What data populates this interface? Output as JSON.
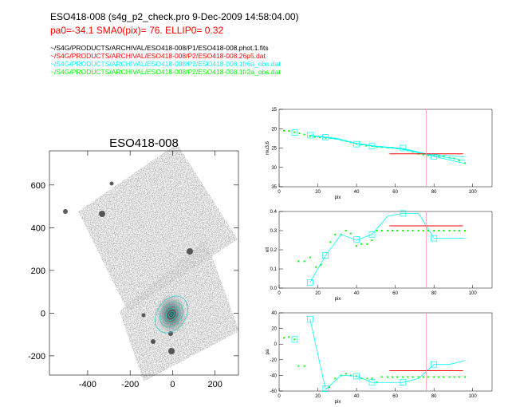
{
  "header": {
    "title": "ESO418-008    (s4g_p2_check.pro   9-Dec-2009 14:58:04.00)",
    "params": "pa0=-34.1  SMA0(pix)= 76.  ELLIP0= 0.32",
    "files": [
      "~/S4G/PRODUCTS/ARCHIVAL/ESO418-008/P1/ESO418-008.phot.1.fits",
      "~/S4G/PRODUCTS/ARCHIVAL/ESO418-008/P2/ESO418-008.26p5.dat",
      "~/S4G/PRODUCTS/ARCHIVAL/ESO418-008/P2/ESO418-008.1fr6a_obs.dat",
      "~/S4G/PRODUCTS/ARCHIVAL/ESO418-008/P2/ESO418-008.1fr2a_obs.dat"
    ]
  },
  "colors": {
    "model": "#00ffff",
    "data": "#00ff00",
    "ref": "#ff0000",
    "marker": "#ff9999"
  },
  "chart_data": [
    {
      "type": "image",
      "title": "ESO418-008",
      "xlim": [
        -580,
        310
      ],
      "ylim": [
        -290,
        760
      ],
      "xticks": [
        -400,
        -200,
        0,
        200
      ],
      "yticks": [
        -200,
        0,
        200,
        400,
        600
      ]
    },
    {
      "type": "line",
      "ylabel": "mu3.6",
      "xlabel": "pix",
      "xlim": [
        0,
        110
      ],
      "ylim": [
        35,
        15
      ],
      "xticks": [
        0,
        20,
        40,
        60,
        80,
        100
      ],
      "yticks": [
        15,
        20,
        25,
        30,
        35
      ],
      "ref_x": 76,
      "ref_line": {
        "y": 26.5,
        "x": [
          57,
          95
        ]
      },
      "cyan_lines": [
        [
          [
            16,
            21.7
          ],
          [
            30,
            22.6
          ],
          [
            40,
            23.8
          ],
          [
            50,
            24.5
          ],
          [
            64,
            25.1
          ],
          [
            76,
            26.5
          ],
          [
            96,
            27.3
          ]
        ],
        [
          [
            16,
            21.8
          ],
          [
            30,
            22.7
          ],
          [
            40,
            23.9
          ],
          [
            50,
            24.6
          ],
          [
            64,
            25.2
          ],
          [
            76,
            26.6
          ],
          [
            96,
            28.2
          ]
        ],
        [
          [
            16,
            21.7
          ],
          [
            30,
            22.5
          ],
          [
            40,
            23.9
          ],
          [
            50,
            24.6
          ],
          [
            64,
            25.3
          ],
          [
            76,
            26.7
          ],
          [
            96,
            29
          ]
        ]
      ],
      "squares": [
        [
          8,
          21
        ],
        [
          16,
          21.7
        ],
        [
          24,
          22.2
        ],
        [
          40,
          24
        ],
        [
          48,
          24.5
        ],
        [
          64,
          25
        ],
        [
          80,
          27.2
        ]
      ],
      "green": [
        [
          2.5,
          20.5
        ],
        [
          5,
          20.6
        ],
        [
          8,
          20.9
        ],
        [
          10.5,
          21.2
        ],
        [
          13,
          21.5
        ],
        [
          16,
          21.9
        ],
        [
          18.5,
          22.1
        ],
        [
          21,
          22.2
        ],
        [
          24,
          22.4
        ],
        [
          26.5,
          22.4
        ],
        [
          29,
          22.6
        ],
        [
          32,
          22.9
        ],
        [
          34.5,
          23.2
        ],
        [
          37,
          23.5
        ],
        [
          40,
          23.9
        ],
        [
          42.5,
          24.1
        ],
        [
          45,
          24.4
        ],
        [
          48,
          24.5
        ],
        [
          50.5,
          24.7
        ],
        [
          53,
          24.8
        ],
        [
          56,
          24.9
        ],
        [
          58.5,
          24.9
        ],
        [
          61,
          25.1
        ],
        [
          64,
          25.3
        ],
        [
          66.5,
          25.6
        ],
        [
          69,
          26
        ],
        [
          72,
          26.5
        ],
        [
          74.5,
          26.7
        ],
        [
          77,
          26.9
        ],
        [
          80,
          27
        ],
        [
          82.5,
          27.1
        ],
        [
          85,
          27.2
        ],
        [
          88,
          27.5
        ],
        [
          90.5,
          27.7
        ],
        [
          93,
          28.2
        ],
        [
          96,
          28.9
        ]
      ]
    },
    {
      "type": "line",
      "ylabel": "ell",
      "xlabel": "pix",
      "xlim": [
        0,
        110
      ],
      "ylim": [
        0,
        0.4
      ],
      "xticks": [
        0,
        20,
        40,
        60,
        80,
        100
      ],
      "yticks": [
        0.0,
        0.1,
        0.2,
        0.3,
        0.4
      ],
      "ref_x": 76,
      "ref_line": {
        "y": 0.325,
        "x": [
          57,
          95
        ]
      },
      "cyan_lines": [
        [
          [
            16,
            0.03
          ],
          [
            24,
            0.17
          ],
          [
            32,
            0.28
          ],
          [
            40,
            0.25
          ],
          [
            48,
            0.28
          ],
          [
            56,
            0.375
          ],
          [
            64,
            0.39
          ],
          [
            72,
            0.39
          ],
          [
            80,
            0.26
          ],
          [
            96,
            0.26
          ]
        ]
      ],
      "squares": [
        [
          16,
          0.03
        ],
        [
          24,
          0.17
        ],
        [
          40,
          0.255
        ],
        [
          48,
          0.28
        ],
        [
          64,
          0.39
        ],
        [
          80,
          0.26
        ]
      ],
      "green": [
        [
          10,
          0.14
        ],
        [
          13,
          0.14
        ],
        [
          16,
          0.16
        ],
        [
          19,
          0.11
        ],
        [
          21.5,
          0.12
        ],
        [
          26.5,
          0.24
        ],
        [
          29,
          0.28
        ],
        [
          32,
          0.28
        ],
        [
          34.5,
          0.3
        ],
        [
          37,
          0.285
        ],
        [
          40,
          0.22
        ],
        [
          42.5,
          0.23
        ],
        [
          45.5,
          0.23
        ],
        [
          48,
          0.25
        ],
        [
          50.5,
          0.3
        ],
        [
          53,
          0.3
        ],
        [
          56,
          0.3
        ],
        [
          58.5,
          0.3
        ],
        [
          61,
          0.3
        ],
        [
          64,
          0.3
        ],
        [
          66.5,
          0.3
        ],
        [
          69,
          0.3
        ],
        [
          72,
          0.3
        ],
        [
          74.5,
          0.3
        ],
        [
          77,
          0.3
        ],
        [
          80,
          0.3
        ],
        [
          82.5,
          0.3
        ],
        [
          85,
          0.3
        ],
        [
          88,
          0.3
        ],
        [
          90.5,
          0.3
        ],
        [
          93,
          0.3
        ],
        [
          96,
          0.3
        ]
      ]
    },
    {
      "type": "line",
      "ylabel": "pa",
      "xlabel": "pix",
      "xlim": [
        0,
        110
      ],
      "ylim": [
        -60,
        40
      ],
      "xticks": [
        0,
        20,
        40,
        60,
        80,
        100
      ],
      "yticks": [
        -60,
        -40,
        -20,
        0,
        20,
        40
      ],
      "ref_x": 76,
      "ref_line": {
        "y": -34,
        "x": [
          57,
          95
        ]
      },
      "cyan_lines": [
        [
          [
            16,
            32
          ],
          [
            24,
            -58
          ],
          [
            32,
            -40
          ],
          [
            40,
            -41
          ],
          [
            48,
            -49
          ],
          [
            64,
            -49
          ],
          [
            72,
            -44
          ],
          [
            80,
            -26
          ],
          [
            88,
            -26
          ],
          [
            96,
            -21
          ]
        ]
      ],
      "squares": [
        [
          8,
          6
        ],
        [
          16,
          32
        ],
        [
          24,
          -57
        ],
        [
          40,
          -41
        ],
        [
          48,
          -49
        ],
        [
          64,
          -49
        ],
        [
          80,
          -26
        ]
      ],
      "green": [
        [
          2.5,
          8
        ],
        [
          5,
          9
        ],
        [
          8,
          6
        ],
        [
          10,
          -28
        ],
        [
          13,
          -28
        ],
        [
          26,
          -55
        ],
        [
          29,
          -44
        ],
        [
          32,
          -40
        ],
        [
          34.5,
          -38
        ],
        [
          37,
          -40
        ],
        [
          40,
          -41
        ],
        [
          42.5,
          -44
        ],
        [
          45.5,
          -44
        ],
        [
          48,
          -44
        ],
        [
          50.5,
          -49
        ],
        [
          53,
          -42
        ],
        [
          56,
          -42
        ],
        [
          58.5,
          -42
        ],
        [
          61,
          -42
        ],
        [
          64,
          -42
        ],
        [
          66.5,
          -42
        ],
        [
          69,
          -42
        ],
        [
          72,
          -42
        ],
        [
          74.5,
          -42
        ],
        [
          77,
          -42
        ],
        [
          80,
          -42
        ],
        [
          82.5,
          -42
        ],
        [
          85,
          -42
        ],
        [
          88,
          -42
        ],
        [
          90.5,
          -42
        ],
        [
          93,
          -42
        ],
        [
          96,
          -42
        ]
      ]
    }
  ]
}
